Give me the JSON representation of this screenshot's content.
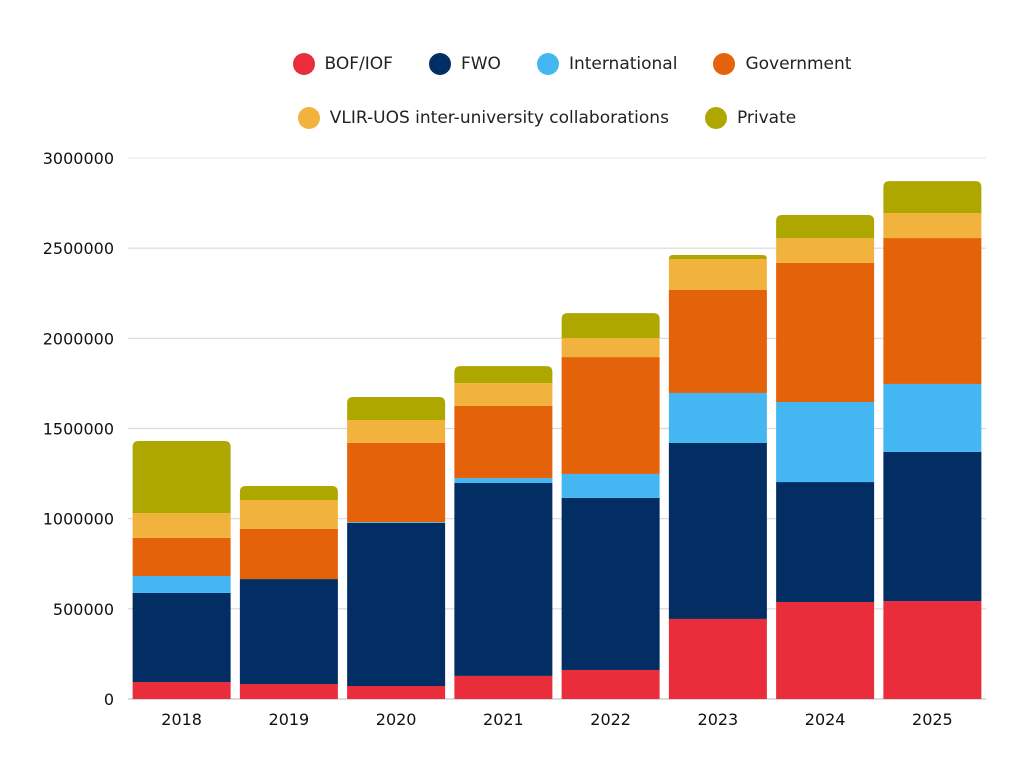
{
  "chart_data": {
    "type": "bar",
    "stacked": true,
    "title": "",
    "xlabel": "",
    "ylabel": "",
    "ylim": [
      0,
      3000000
    ],
    "yticks": [
      0,
      500000,
      1000000,
      1500000,
      2000000,
      2500000,
      3000000
    ],
    "ytick_labels": [
      "0",
      "500000",
      "1000000",
      "1500000",
      "2000000",
      "2500000",
      "3000000"
    ],
    "grid": true,
    "legend_position": "top-center",
    "categories": [
      "2018",
      "2019",
      "2020",
      "2021",
      "2022",
      "2023",
      "2024",
      "2025"
    ],
    "series": [
      {
        "name": "BOF/IOF",
        "color": "#e92d3a",
        "values": [
          94000,
          83000,
          72000,
          128000,
          161000,
          444000,
          538000,
          543000
        ]
      },
      {
        "name": "FWO",
        "color": "#022e63",
        "values": [
          494000,
          582000,
          904000,
          1070000,
          954000,
          976000,
          665000,
          827000
        ]
      },
      {
        "name": "International",
        "color": "#44b7f2",
        "values": [
          94000,
          0,
          5000,
          27000,
          133000,
          277000,
          444000,
          377000
        ]
      },
      {
        "name": "Government",
        "color": "#e3620a",
        "values": [
          211000,
          278000,
          439000,
          400000,
          648000,
          571000,
          771000,
          809000
        ]
      },
      {
        "name": "VLIR-UOS inter-university collaborations",
        "color": "#f1b33e",
        "values": [
          138000,
          160000,
          127000,
          127000,
          106000,
          172000,
          138000,
          139000
        ]
      },
      {
        "name": "Private",
        "color": "#aea700",
        "values": [
          400000,
          78000,
          128000,
          94000,
          138000,
          22000,
          128000,
          177000
        ]
      }
    ]
  }
}
